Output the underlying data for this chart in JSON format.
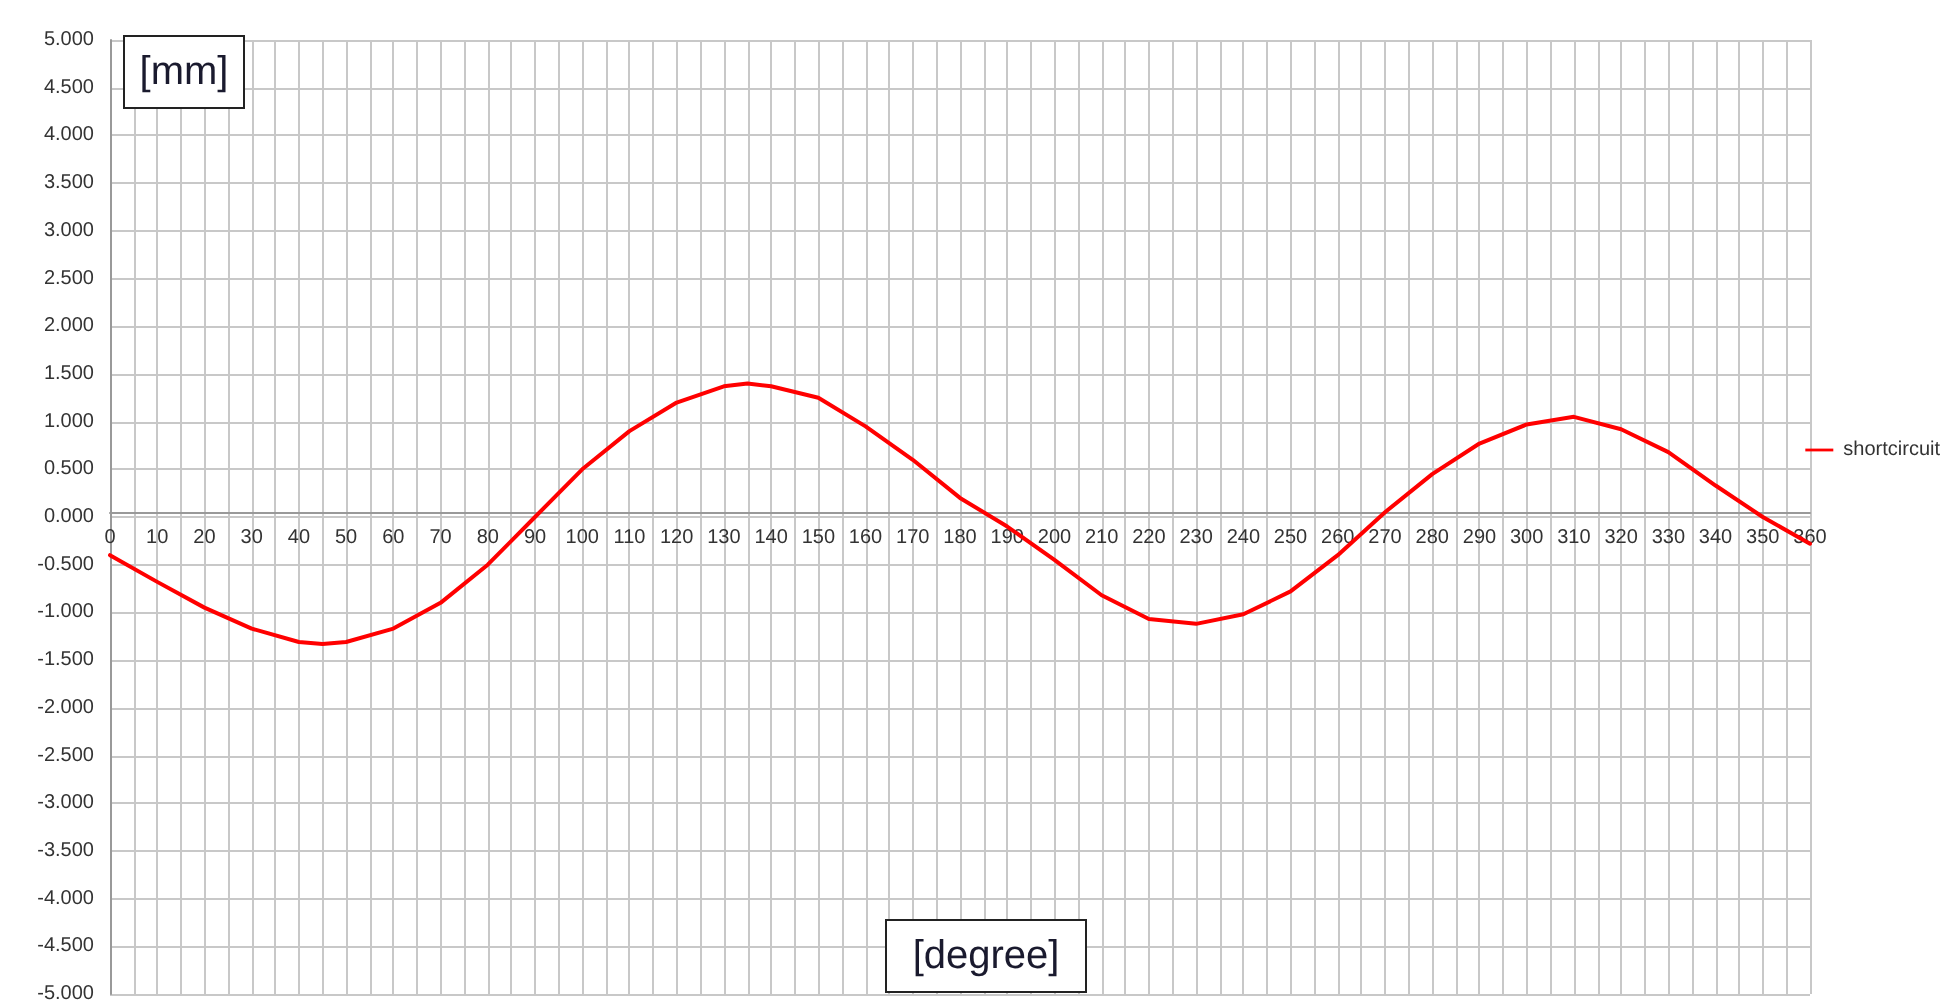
{
  "chart_data": {
    "type": "line",
    "xlabel": "[degree]",
    "ylabel": "[mm]",
    "x": [
      0,
      10,
      20,
      30,
      40,
      45,
      50,
      60,
      70,
      80,
      90,
      100,
      110,
      120,
      130,
      135,
      140,
      150,
      160,
      170,
      180,
      190,
      200,
      210,
      220,
      230,
      240,
      250,
      260,
      270,
      280,
      290,
      300,
      310,
      320,
      330,
      340,
      350,
      360
    ],
    "series": [
      {
        "name": "shortcircuit",
        "color": "#ff0000",
        "values": [
          -0.4,
          -0.68,
          -0.95,
          -1.17,
          -1.31,
          -1.33,
          -1.31,
          -1.17,
          -0.9,
          -0.5,
          0.0,
          0.5,
          0.9,
          1.2,
          1.37,
          1.4,
          1.37,
          1.25,
          0.95,
          0.6,
          0.2,
          -0.1,
          -0.45,
          -0.82,
          -1.07,
          -1.12,
          -1.02,
          -0.78,
          -0.4,
          0.05,
          0.45,
          0.77,
          0.97,
          1.05,
          0.92,
          0.68,
          0.33,
          0.0,
          -0.28
        ]
      }
    ],
    "xlim": [
      0,
      360
    ],
    "xticks": [
      0,
      {
        "value": 5,
        "label": null
      },
      10,
      {
        "value": 15,
        "label": null
      },
      20,
      {
        "value": 25,
        "label": null
      },
      30,
      {
        "value": 35,
        "label": null
      },
      40,
      {
        "value": 45,
        "label": null
      },
      50,
      {
        "value": 55,
        "label": null
      },
      60,
      {
        "value": 65,
        "label": null
      },
      70,
      {
        "value": 75,
        "label": null
      },
      80,
      {
        "value": 85,
        "label": null
      },
      90,
      {
        "value": 95,
        "label": null
      },
      100,
      {
        "value": 105,
        "label": null
      },
      110,
      {
        "value": 115,
        "label": null
      },
      120,
      {
        "value": 125,
        "label": null
      },
      130,
      {
        "value": 135,
        "label": null
      },
      140,
      {
        "value": 145,
        "label": null
      },
      150,
      {
        "value": 155,
        "label": null
      },
      160,
      {
        "value": 165,
        "label": null
      },
      170,
      {
        "value": 175,
        "label": null
      },
      180,
      {
        "value": 185,
        "label": null
      },
      190,
      {
        "value": 195,
        "label": null
      },
      200,
      {
        "value": 205,
        "label": null
      },
      210,
      {
        "value": 215,
        "label": null
      },
      220,
      {
        "value": 225,
        "label": null
      },
      230,
      {
        "value": 235,
        "label": null
      },
      240,
      {
        "value": 245,
        "label": null
      },
      250,
      {
        "value": 255,
        "label": null
      },
      260,
      {
        "value": 265,
        "label": null
      },
      270,
      {
        "value": 275,
        "label": null
      },
      280,
      {
        "value": 285,
        "label": null
      },
      290,
      {
        "value": 295,
        "label": null
      },
      300,
      {
        "value": 305,
        "label": null
      },
      310,
      {
        "value": 315,
        "label": null
      },
      320,
      {
        "value": 325,
        "label": null
      },
      330,
      {
        "value": 335,
        "label": null
      },
      340,
      {
        "value": 345,
        "label": null
      },
      350,
      {
        "value": 355,
        "label": null
      },
      360
    ],
    "ylim": [
      -5,
      5
    ],
    "yticks": [
      {
        "value": -5,
        "label": "-5.000"
      },
      {
        "value": -4.5,
        "label": "-4.500"
      },
      {
        "value": -4,
        "label": "-4.000"
      },
      {
        "value": -3.5,
        "label": "-3.500"
      },
      {
        "value": -3,
        "label": "-3.000"
      },
      {
        "value": -2.5,
        "label": "-2.500"
      },
      {
        "value": -2,
        "label": "-2.000"
      },
      {
        "value": -1.5,
        "label": "-1.500"
      },
      {
        "value": -1,
        "label": "-1.000"
      },
      {
        "value": -0.5,
        "label": "-0.500"
      },
      {
        "value": 0,
        "label": "0.000"
      },
      {
        "value": 0.5,
        "label": "0.500"
      },
      {
        "value": 1,
        "label": "1.000"
      },
      {
        "value": 1.5,
        "label": "1.500"
      },
      {
        "value": 2,
        "label": "2.000"
      },
      {
        "value": 2.5,
        "label": "2.500"
      },
      {
        "value": 3,
        "label": "3.000"
      },
      {
        "value": 3.5,
        "label": "3.500"
      },
      {
        "value": 4,
        "label": "4.000"
      },
      {
        "value": 4.5,
        "label": "4.500"
      },
      {
        "value": 5,
        "label": "5.000"
      }
    ],
    "grid": true,
    "legend": "right",
    "marker": "none",
    "line_style": "solid"
  }
}
